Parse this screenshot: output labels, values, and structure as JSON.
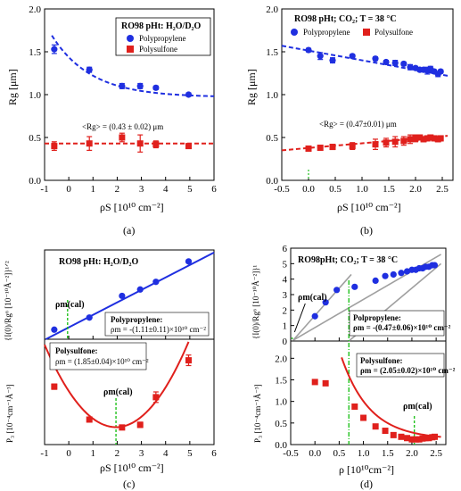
{
  "colors": {
    "blue": "#1f2fe0",
    "red": "#e0201c",
    "green": "#22c21e",
    "gray": "#a0a0a0",
    "black": "#000000"
  },
  "chart_data": [
    {
      "panel_label": "(a)",
      "type": "scatter",
      "title": "RO98 pHt: H₂O/D₂O",
      "xlabel": "ρS [10¹⁰ cm⁻²]",
      "ylabel": "Rg [μm]",
      "xlim": [
        -1,
        6
      ],
      "ylim": [
        0,
        2.0
      ],
      "xticks": [
        "-1",
        "0",
        "1",
        "2",
        "3",
        "4",
        "5",
        "6"
      ],
      "yticks": [
        "0.0",
        "0.5",
        "1.0",
        "1.5",
        "2.0"
      ],
      "legend": [
        "Polypropylene",
        "Polysulfone"
      ],
      "annotation": "<Rg> = (0.43 ± 0.02) μm",
      "series": [
        {
          "name": "Polypropylene",
          "marker": "circle",
          "color": "blue",
          "x": [
            -0.6,
            0.85,
            2.2,
            2.95,
            3.6,
            4.95
          ],
          "y": [
            1.53,
            1.29,
            1.1,
            1.1,
            1.08,
            1.0
          ],
          "err": [
            0.05,
            0.03,
            0.03,
            0.03,
            0.02,
            0.02
          ]
        },
        {
          "name": "Polysulfone",
          "marker": "square",
          "color": "red",
          "x": [
            -0.6,
            0.85,
            2.2,
            2.95,
            3.6,
            4.95
          ],
          "y": [
            0.4,
            0.43,
            0.5,
            0.43,
            0.42,
            0.4
          ],
          "err": [
            0.05,
            0.08,
            0.05,
            0.1,
            0.04,
            0.02
          ]
        }
      ],
      "fits": [
        {
          "color": "blue",
          "dash": true,
          "x": [
            -1,
            6
          ],
          "fn": "exp",
          "a": 1.68,
          "b": 0.7,
          "c": 0.3
        },
        {
          "color": "red",
          "dash": true,
          "fn": "const",
          "v": 0.43
        }
      ]
    },
    {
      "panel_label": "(b)",
      "type": "scatter",
      "title": "RO98 pHt; CO₂; T = 38 °C",
      "xlabel": "ρS [10¹⁰ cm⁻²]",
      "ylabel": "Rg [μm]",
      "xlim": [
        -0.5,
        2.7
      ],
      "ylim": [
        0,
        2.0
      ],
      "xticks": [
        "-0.5",
        "0.0",
        "0.5",
        "1.0",
        "1.5",
        "2.0",
        "2.5"
      ],
      "yticks": [
        "0.0",
        "0.5",
        "1.0",
        "1.5",
        "2.0"
      ],
      "legend": [
        "Polypropylene",
        "Polysulfone"
      ],
      "annotation": "<Rg> = (0.47±0.01) μm",
      "series": [
        {
          "name": "Polypropylene",
          "marker": "circle",
          "color": "blue",
          "x": [
            0.0,
            0.22,
            0.45,
            0.82,
            1.25,
            1.45,
            1.62,
            1.78,
            1.9,
            2.0,
            2.08,
            2.15,
            2.22,
            2.28,
            2.35,
            2.42,
            2.47
          ],
          "y": [
            1.52,
            1.45,
            1.4,
            1.45,
            1.42,
            1.38,
            1.37,
            1.36,
            1.32,
            1.31,
            1.29,
            1.29,
            1.28,
            1.3,
            1.27,
            1.24,
            1.27
          ],
          "err": [
            0.02,
            0.04,
            0.03,
            0.02,
            0.02,
            0.02,
            0.03,
            0.02,
            0.03,
            0.02,
            0.02,
            0.02,
            0.04,
            0.03,
            0.02,
            0.03,
            0.02
          ]
        },
        {
          "name": "Polysulfone",
          "marker": "square",
          "color": "red",
          "x": [
            0.0,
            0.22,
            0.45,
            0.82,
            1.25,
            1.45,
            1.62,
            1.78,
            1.9,
            2.0,
            2.08,
            2.15,
            2.22,
            2.28,
            2.35,
            2.42,
            2.47
          ],
          "y": [
            0.37,
            0.38,
            0.39,
            0.4,
            0.42,
            0.44,
            0.45,
            0.46,
            0.48,
            0.49,
            0.5,
            0.48,
            0.49,
            0.5,
            0.49,
            0.48,
            0.49
          ],
          "err": [
            0.02,
            0.02,
            0.03,
            0.04,
            0.06,
            0.05,
            0.06,
            0.05,
            0.05,
            0.04,
            0.03,
            0.03,
            0.03,
            0.03,
            0.03,
            0.03,
            0.03
          ]
        }
      ],
      "fits": [
        {
          "color": "blue",
          "dash": true,
          "fn": "line",
          "x": [
            -0.5,
            2.6
          ],
          "y": [
            1.57,
            1.22
          ]
        },
        {
          "color": "red",
          "dash": true,
          "fn": "line",
          "x": [
            -0.5,
            2.6
          ],
          "y": [
            0.35,
            0.52
          ]
        }
      ]
    },
    {
      "panel_label": "(c)",
      "type": "scatter",
      "title": "RO98 pHt: H₂O/D₂O",
      "xlabel": "ρS [10¹⁰ cm⁻²]",
      "ylabel_top": "{I(0)/Rg⁶ [10⁻¹⁰Å⁻²]}¹ᐟ²",
      "ylabel_bottom": "P₃ [10⁻⁴cm⁻¹Å⁻³]",
      "xlim": [
        -1,
        6
      ],
      "xticks": [
        "-1",
        "0",
        "1",
        "2",
        "3",
        "4",
        "5",
        "6"
      ],
      "marker_label": "ρm(cal)",
      "top": {
        "series": [
          {
            "color": "blue",
            "marker": "circle",
            "x": [
              -0.6,
              0.85,
              2.2,
              2.95,
              3.6,
              4.95
            ],
            "y": [
              1.5,
              3.4,
              6.8,
              7.8,
              9.0,
              12.2
            ]
          }
        ],
        "annotation_title": "Polypropylene:",
        "annotation_value": "ρm = -(1.11±0.11)×10¹⁰ cm⁻²"
      },
      "bottom": {
        "series": [
          {
            "color": "red",
            "marker": "square",
            "x": [
              -0.6,
              0.85,
              2.2,
              2.95,
              3.6,
              4.95
            ],
            "y": [
              2.2,
              0.95,
              0.65,
              0.75,
              1.8,
              3.2
            ],
            "err": [
              0.1,
              0.08,
              0.08,
              0.1,
              0.2,
              0.2
            ]
          }
        ],
        "annotation_title": "Polysulfone:",
        "annotation_value": "ρm = (1.85±0.04)×10¹⁰ cm⁻²"
      }
    },
    {
      "panel_label": "(d)",
      "type": "scatter",
      "title": "RO98pHt; CO₂; T = 38 °C",
      "xlabel": "ρ [10¹⁰cm⁻²]",
      "ylabel_top": "{I(0)/Rg⁶ [10⁻¹⁰Å⁻²]}¹",
      "ylabel_bottom": "P₃ [10⁻⁴cm⁻¹Å⁻³]",
      "xlim": [
        -0.5,
        2.7
      ],
      "xticks": [
        "-0.5",
        "0.0",
        "0.5",
        "1.0",
        "1.5",
        "2.0",
        "2.5"
      ],
      "marker_label": "ρm(cal)",
      "top": {
        "yticks": [
          "0",
          "1",
          "2",
          "3",
          "4",
          "5",
          "6"
        ],
        "series": [
          {
            "color": "blue",
            "marker": "circle",
            "x": [
              0.0,
              0.22,
              0.45,
              0.82,
              1.25,
              1.45,
              1.62,
              1.78,
              1.9,
              2.0,
              2.08,
              2.15,
              2.22,
              2.28,
              2.35,
              2.42,
              2.47
            ],
            "y": [
              1.6,
              2.5,
              3.3,
              3.5,
              3.9,
              4.2,
              4.3,
              4.4,
              4.5,
              4.6,
              4.6,
              4.7,
              4.7,
              4.8,
              4.8,
              4.9,
              4.9
            ]
          }
        ],
        "annotation_title": "Polpropylene:",
        "annotation_value": "ρm = -(0.47±0.06)×10¹⁰ cm⁻²"
      },
      "bottom": {
        "yticks": [
          "0.0",
          "0.5",
          "1.0",
          "1.5",
          "2.0"
        ],
        "series": [
          {
            "color": "red",
            "marker": "square",
            "x": [
              0.0,
              0.22,
              0.82,
              1.0,
              1.25,
              1.45,
              1.62,
              1.78,
              1.9,
              2.0,
              2.08,
              2.15,
              2.22,
              2.28,
              2.35,
              2.42,
              2.47
            ],
            "y": [
              1.45,
              1.42,
              0.88,
              0.62,
              0.42,
              0.32,
              0.22,
              0.18,
              0.15,
              0.12,
              0.12,
              0.12,
              0.14,
              0.15,
              0.15,
              0.17,
              0.18
            ]
          }
        ],
        "annotation_title": "Polysulfone:",
        "annotation_value": "ρm = (2.05±0.02)×10¹⁰ cm⁻²"
      }
    }
  ]
}
